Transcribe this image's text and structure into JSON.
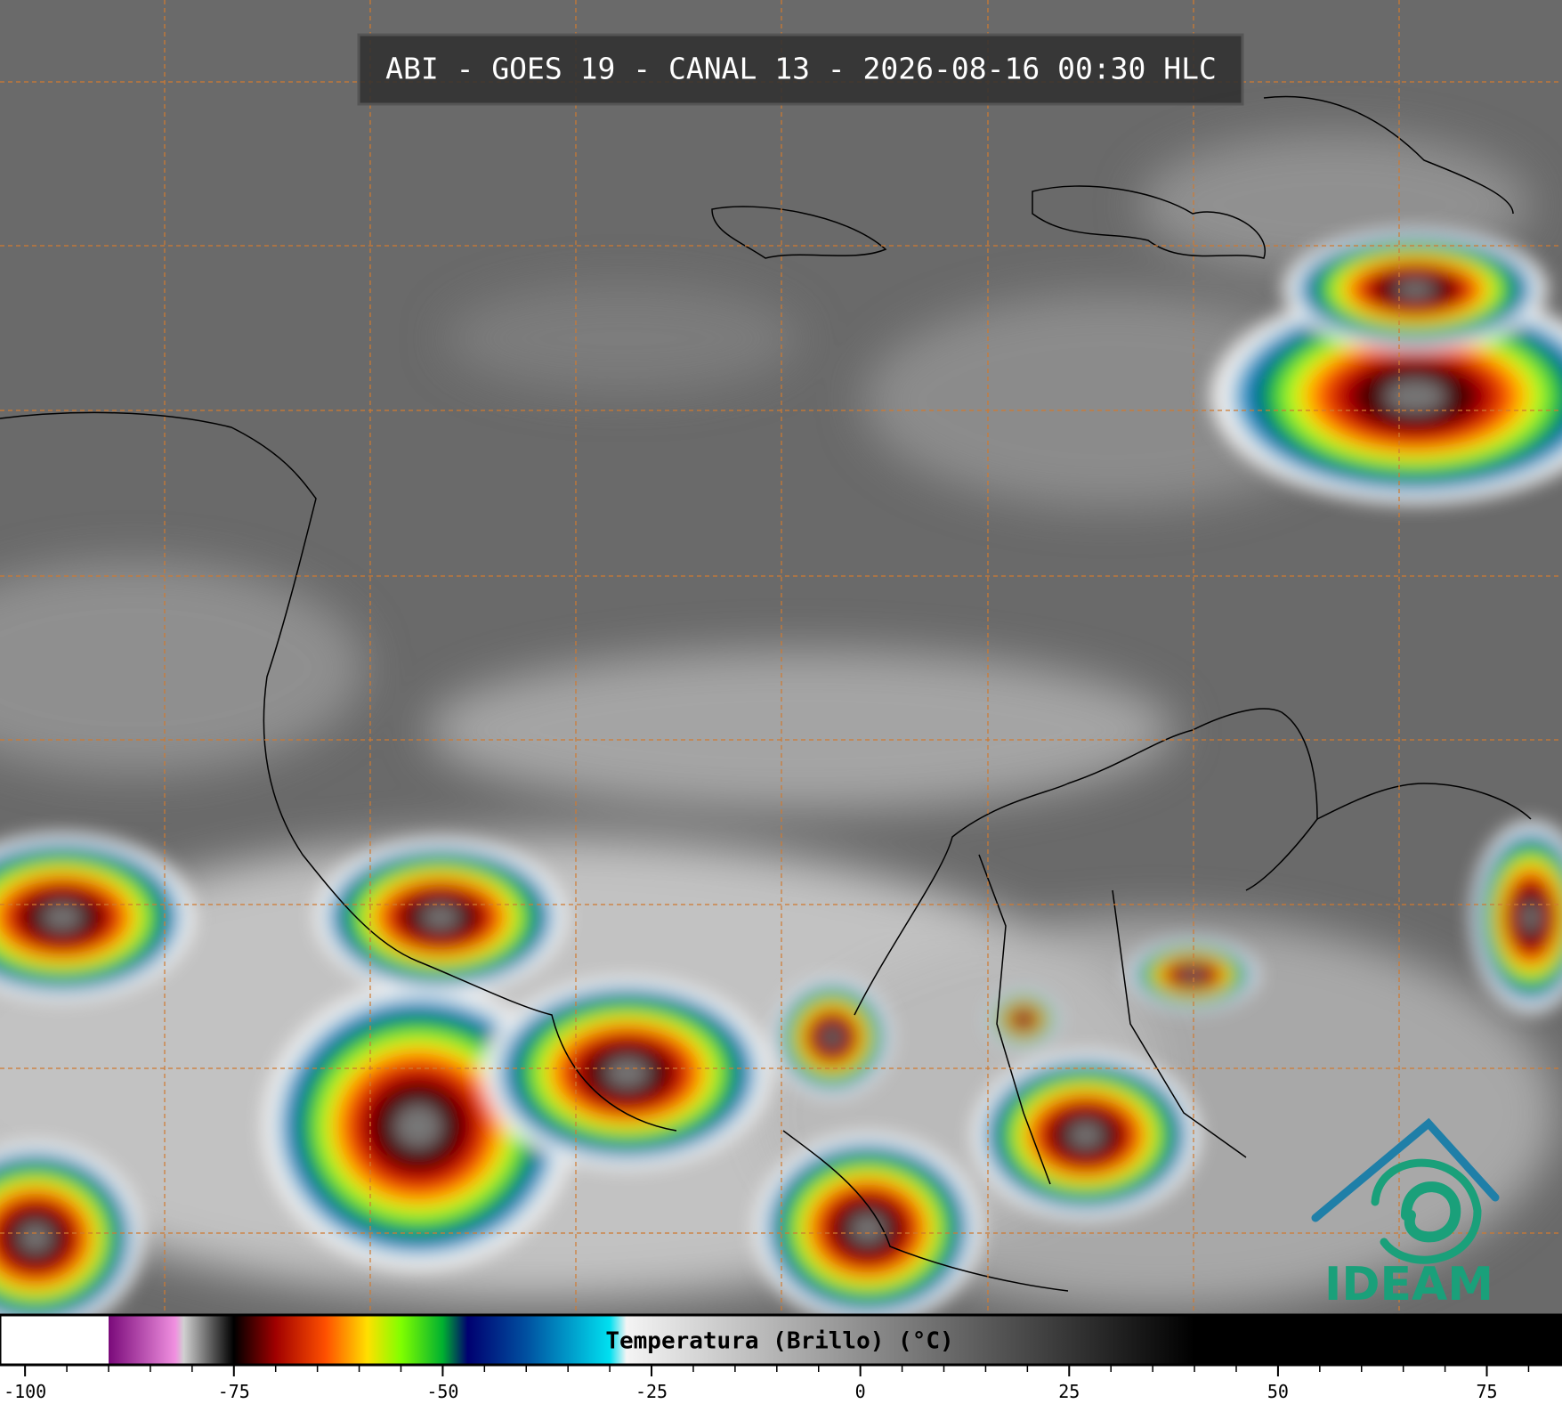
{
  "title": "ABI - GOES 19 - CANAL 13 - 2026-08-16 00:30 HLC",
  "logo": "IDEAM",
  "colorbar": {
    "label": "Temperatura (Brillo) (°C)",
    "xlim": [
      -103,
      84
    ],
    "ticks": [
      -100,
      -75,
      -50,
      -25,
      0,
      25,
      50,
      75
    ],
    "minor_step": 5,
    "stops": [
      {
        "value": -103,
        "color": "#ffffff"
      },
      {
        "value": -90,
        "color": "#ffffff"
      },
      {
        "value": -90,
        "color": "#7a0a7a"
      },
      {
        "value": -82,
        "color": "#f090e0"
      },
      {
        "value": -81,
        "color": "#d0d0d0"
      },
      {
        "value": -76,
        "color": "#202020"
      },
      {
        "value": -75,
        "color": "#000000"
      },
      {
        "value": -70,
        "color": "#a00000"
      },
      {
        "value": -64,
        "color": "#ff5000"
      },
      {
        "value": -59,
        "color": "#ffe000"
      },
      {
        "value": -55,
        "color": "#80ff00"
      },
      {
        "value": -50,
        "color": "#00b030"
      },
      {
        "value": -47,
        "color": "#000070"
      },
      {
        "value": -40,
        "color": "#0050a0"
      },
      {
        "value": -30,
        "color": "#00e0f0"
      },
      {
        "value": -28,
        "color": "#f4f4f4"
      },
      {
        "value": 40,
        "color": "#000000"
      },
      {
        "value": 84,
        "color": "#000000"
      }
    ]
  }
}
